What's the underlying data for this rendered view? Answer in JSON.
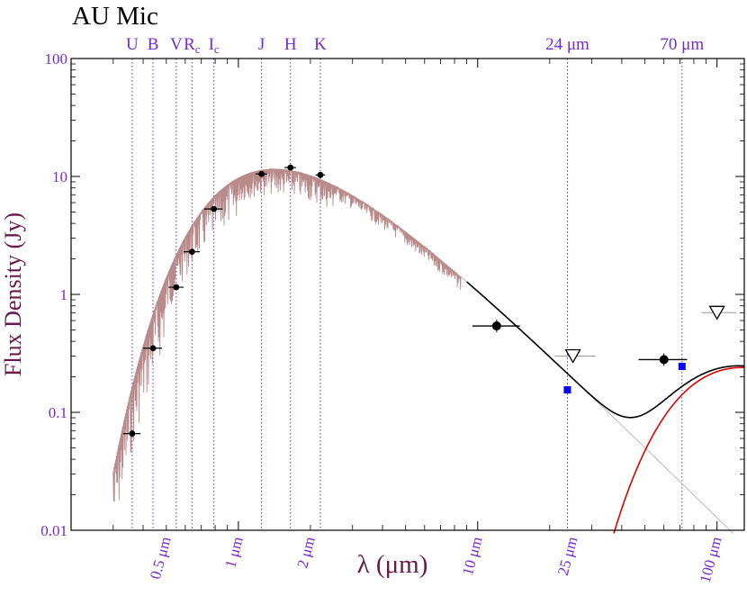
{
  "chart_data": {
    "type": "scatter",
    "title": "AU Mic",
    "xlabel": "λ (μm)",
    "ylabel": "Flux Density (Jy)",
    "x_scale": "log",
    "y_scale": "log",
    "xlim": [
      0.2,
      130
    ],
    "ylim": [
      0.01,
      100
    ],
    "grid": false,
    "y_ticks": [
      {
        "value": 100,
        "label": "100"
      },
      {
        "value": 10,
        "label": "10"
      },
      {
        "value": 1,
        "label": "1"
      },
      {
        "value": 0.1,
        "label": "0.1"
      },
      {
        "value": 0.01,
        "label": "0.01"
      }
    ],
    "x_ticks": [
      {
        "value": 0.5,
        "label": "0.5 μm"
      },
      {
        "value": 1,
        "label": "1 μm"
      },
      {
        "value": 2,
        "label": "2 μm"
      },
      {
        "value": 10,
        "label": "10 μm"
      },
      {
        "value": 25,
        "label": "25 μm"
      },
      {
        "value": 100,
        "label": "100 μm"
      }
    ],
    "bands": [
      {
        "name": "U",
        "sub": "",
        "wavelength": 0.36
      },
      {
        "name": "B",
        "sub": "",
        "wavelength": 0.44
      },
      {
        "name": "V",
        "sub": "",
        "wavelength": 0.55
      },
      {
        "name": "R",
        "sub": "c",
        "wavelength": 0.64
      },
      {
        "name": "I",
        "sub": "c",
        "wavelength": 0.79
      },
      {
        "name": "J",
        "sub": "",
        "wavelength": 1.25
      },
      {
        "name": "H",
        "sub": "",
        "wavelength": 1.65
      },
      {
        "name": "K",
        "sub": "",
        "wavelength": 2.2
      },
      {
        "name": "24 μm",
        "sub": "",
        "wavelength": 23.7
      },
      {
        "name": "70 μm",
        "sub": "",
        "wavelength": 71.4
      }
    ],
    "photometry": [
      {
        "x": 0.36,
        "y": 0.066,
        "xerr": [
          0.33,
          0.39
        ]
      },
      {
        "x": 0.44,
        "y": 0.35,
        "xerr": [
          0.4,
          0.48
        ]
      },
      {
        "x": 0.55,
        "y": 1.15,
        "xerr": [
          0.51,
          0.59
        ]
      },
      {
        "x": 0.64,
        "y": 2.3,
        "xerr": [
          0.59,
          0.69
        ]
      },
      {
        "x": 0.79,
        "y": 5.3,
        "xerr": [
          0.72,
          0.86
        ]
      },
      {
        "x": 1.25,
        "y": 10.5,
        "xerr": [
          1.18,
          1.32
        ]
      },
      {
        "x": 1.65,
        "y": 11.9,
        "xerr": [
          1.56,
          1.74
        ]
      },
      {
        "x": 2.2,
        "y": 10.3,
        "xerr": [
          2.1,
          2.3
        ]
      }
    ],
    "iras_points": [
      {
        "x": 12,
        "y": 0.54,
        "xerr": [
          9.5,
          15.0
        ]
      },
      {
        "x": 60,
        "y": 0.28,
        "xerr": [
          47,
          75
        ]
      }
    ],
    "upper_limits": [
      {
        "x": 25,
        "y": 0.3,
        "xerr": [
          21,
          31
        ]
      },
      {
        "x": 100,
        "y": 0.7,
        "xerr": [
          86,
          120
        ]
      }
    ],
    "mips_points": [
      {
        "x": 23.7,
        "y": 0.155
      },
      {
        "x": 71.4,
        "y": 0.245
      }
    ],
    "models": [
      {
        "id": "photosphere",
        "color": "#b88a8a"
      },
      {
        "id": "photosphere_extension",
        "color": "#aaaaaa"
      },
      {
        "id": "blackbody_dust",
        "color": "#e00000",
        "temperature_K": 40
      },
      {
        "id": "total",
        "color": "#000000"
      }
    ],
    "colors": {
      "axis_labels": "#6a1a4a",
      "tick_labels": "#7a2ad0",
      "band_lines": "#6a2ad8",
      "points": "#000000",
      "mips": "#0000ff",
      "upper_limit_outline": "#000000",
      "errorbar_gray": "#999999"
    }
  }
}
